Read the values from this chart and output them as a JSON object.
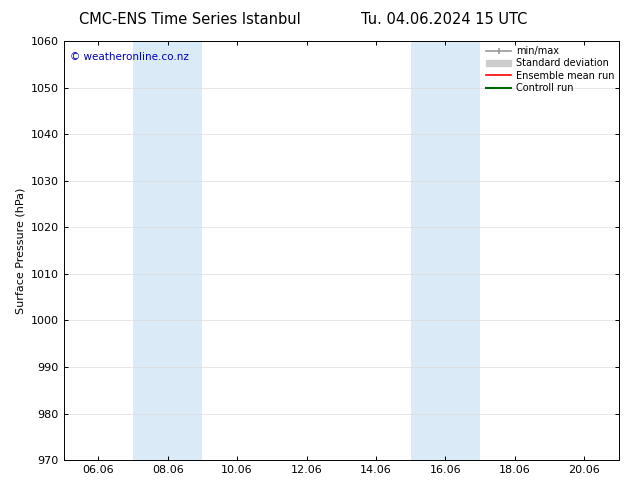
{
  "title_left": "CMC-ENS Time Series Istanbul",
  "title_right": "Tu. 04.06.2024 15 UTC",
  "ylabel": "Surface Pressure (hPa)",
  "ylim": [
    970,
    1060
  ],
  "yticks": [
    970,
    980,
    990,
    1000,
    1010,
    1020,
    1030,
    1040,
    1050,
    1060
  ],
  "xtick_labels": [
    "06.06",
    "08.06",
    "10.06",
    "12.06",
    "14.06",
    "16.06",
    "18.06",
    "20.06"
  ],
  "xtick_positions": [
    0,
    2,
    4,
    6,
    8,
    10,
    12,
    14
  ],
  "xlim": [
    -1,
    15
  ],
  "shaded_bands": [
    {
      "xmin": 1.0,
      "xmax": 3.0
    },
    {
      "xmin": 9.0,
      "xmax": 11.0
    }
  ],
  "shade_color": "#daeaf7",
  "watermark": "© weatheronline.co.nz",
  "watermark_color": "#0000bb",
  "legend_items": [
    {
      "label": "min/max",
      "color": "#999999",
      "lw": 1.2,
      "type": "minmax"
    },
    {
      "label": "Standard deviation",
      "color": "#cccccc",
      "lw": 5,
      "type": "patch"
    },
    {
      "label": "Ensemble mean run",
      "color": "#ff0000",
      "lw": 1.2,
      "type": "line"
    },
    {
      "label": "Controll run",
      "color": "#006600",
      "lw": 1.5,
      "type": "line"
    }
  ],
  "background_color": "#ffffff",
  "plot_bg_color": "#ffffff",
  "grid_color": "#dddddd",
  "title_fontsize": 10.5,
  "label_fontsize": 8,
  "tick_fontsize": 8,
  "watermark_fontsize": 7.5
}
